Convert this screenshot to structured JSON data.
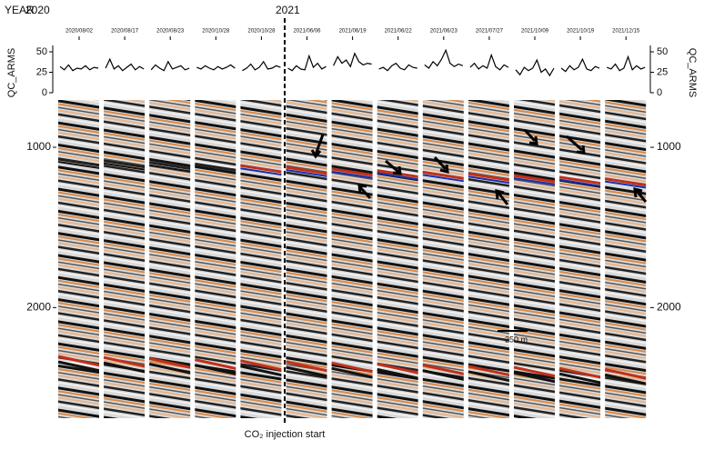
{
  "header": {
    "year_label": "YEAR",
    "years": [
      "2020",
      "2021"
    ]
  },
  "dates": [
    "2020/08/02",
    "2020/08/17",
    "2020/08/23",
    "2020/10/28",
    "2020/10/28",
    "2021/06/06",
    "2021/06/19",
    "2021/06/22",
    "2021/06/23",
    "2021/07/27",
    "2021/10/09",
    "2021/10/19",
    "2021/12/15"
  ],
  "qc_axis": {
    "label": "QC_ARMS",
    "ylim": [
      0,
      60
    ],
    "yticks": [
      0,
      25,
      50
    ]
  },
  "qc_traces": [
    [
      32,
      28,
      34,
      27,
      30,
      29,
      33,
      28,
      31,
      30
    ],
    [
      30,
      41,
      29,
      33,
      27,
      31,
      35,
      28,
      32,
      29
    ],
    [
      28,
      34,
      30,
      27,
      38,
      29,
      31,
      33,
      28,
      30
    ],
    [
      31,
      29,
      33,
      30,
      28,
      32,
      29,
      31,
      34,
      30
    ],
    [
      27,
      30,
      35,
      28,
      31,
      38,
      29,
      30,
      33,
      31
    ],
    [
      30,
      27,
      33,
      29,
      28,
      45,
      31,
      36,
      29,
      32
    ],
    [
      33,
      44,
      36,
      40,
      32,
      48,
      38,
      34,
      36,
      35
    ],
    [
      29,
      31,
      27,
      33,
      36,
      30,
      28,
      34,
      31,
      30
    ],
    [
      34,
      30,
      38,
      33,
      41,
      52,
      36,
      32,
      35,
      33
    ],
    [
      31,
      36,
      29,
      33,
      30,
      46,
      32,
      28,
      34,
      31
    ],
    [
      28,
      22,
      31,
      27,
      30,
      40,
      25,
      29,
      21,
      30
    ],
    [
      30,
      26,
      33,
      28,
      31,
      41,
      29,
      27,
      32,
      30
    ],
    [
      31,
      29,
      35,
      27,
      30,
      44,
      28,
      33,
      29,
      31
    ]
  ],
  "depth_axis": {
    "ylim": [
      705,
      2690
    ],
    "yticks": [
      1000,
      2000
    ]
  },
  "annotation": "CO₂ injection start",
  "scale_bar": "250 m"
}
